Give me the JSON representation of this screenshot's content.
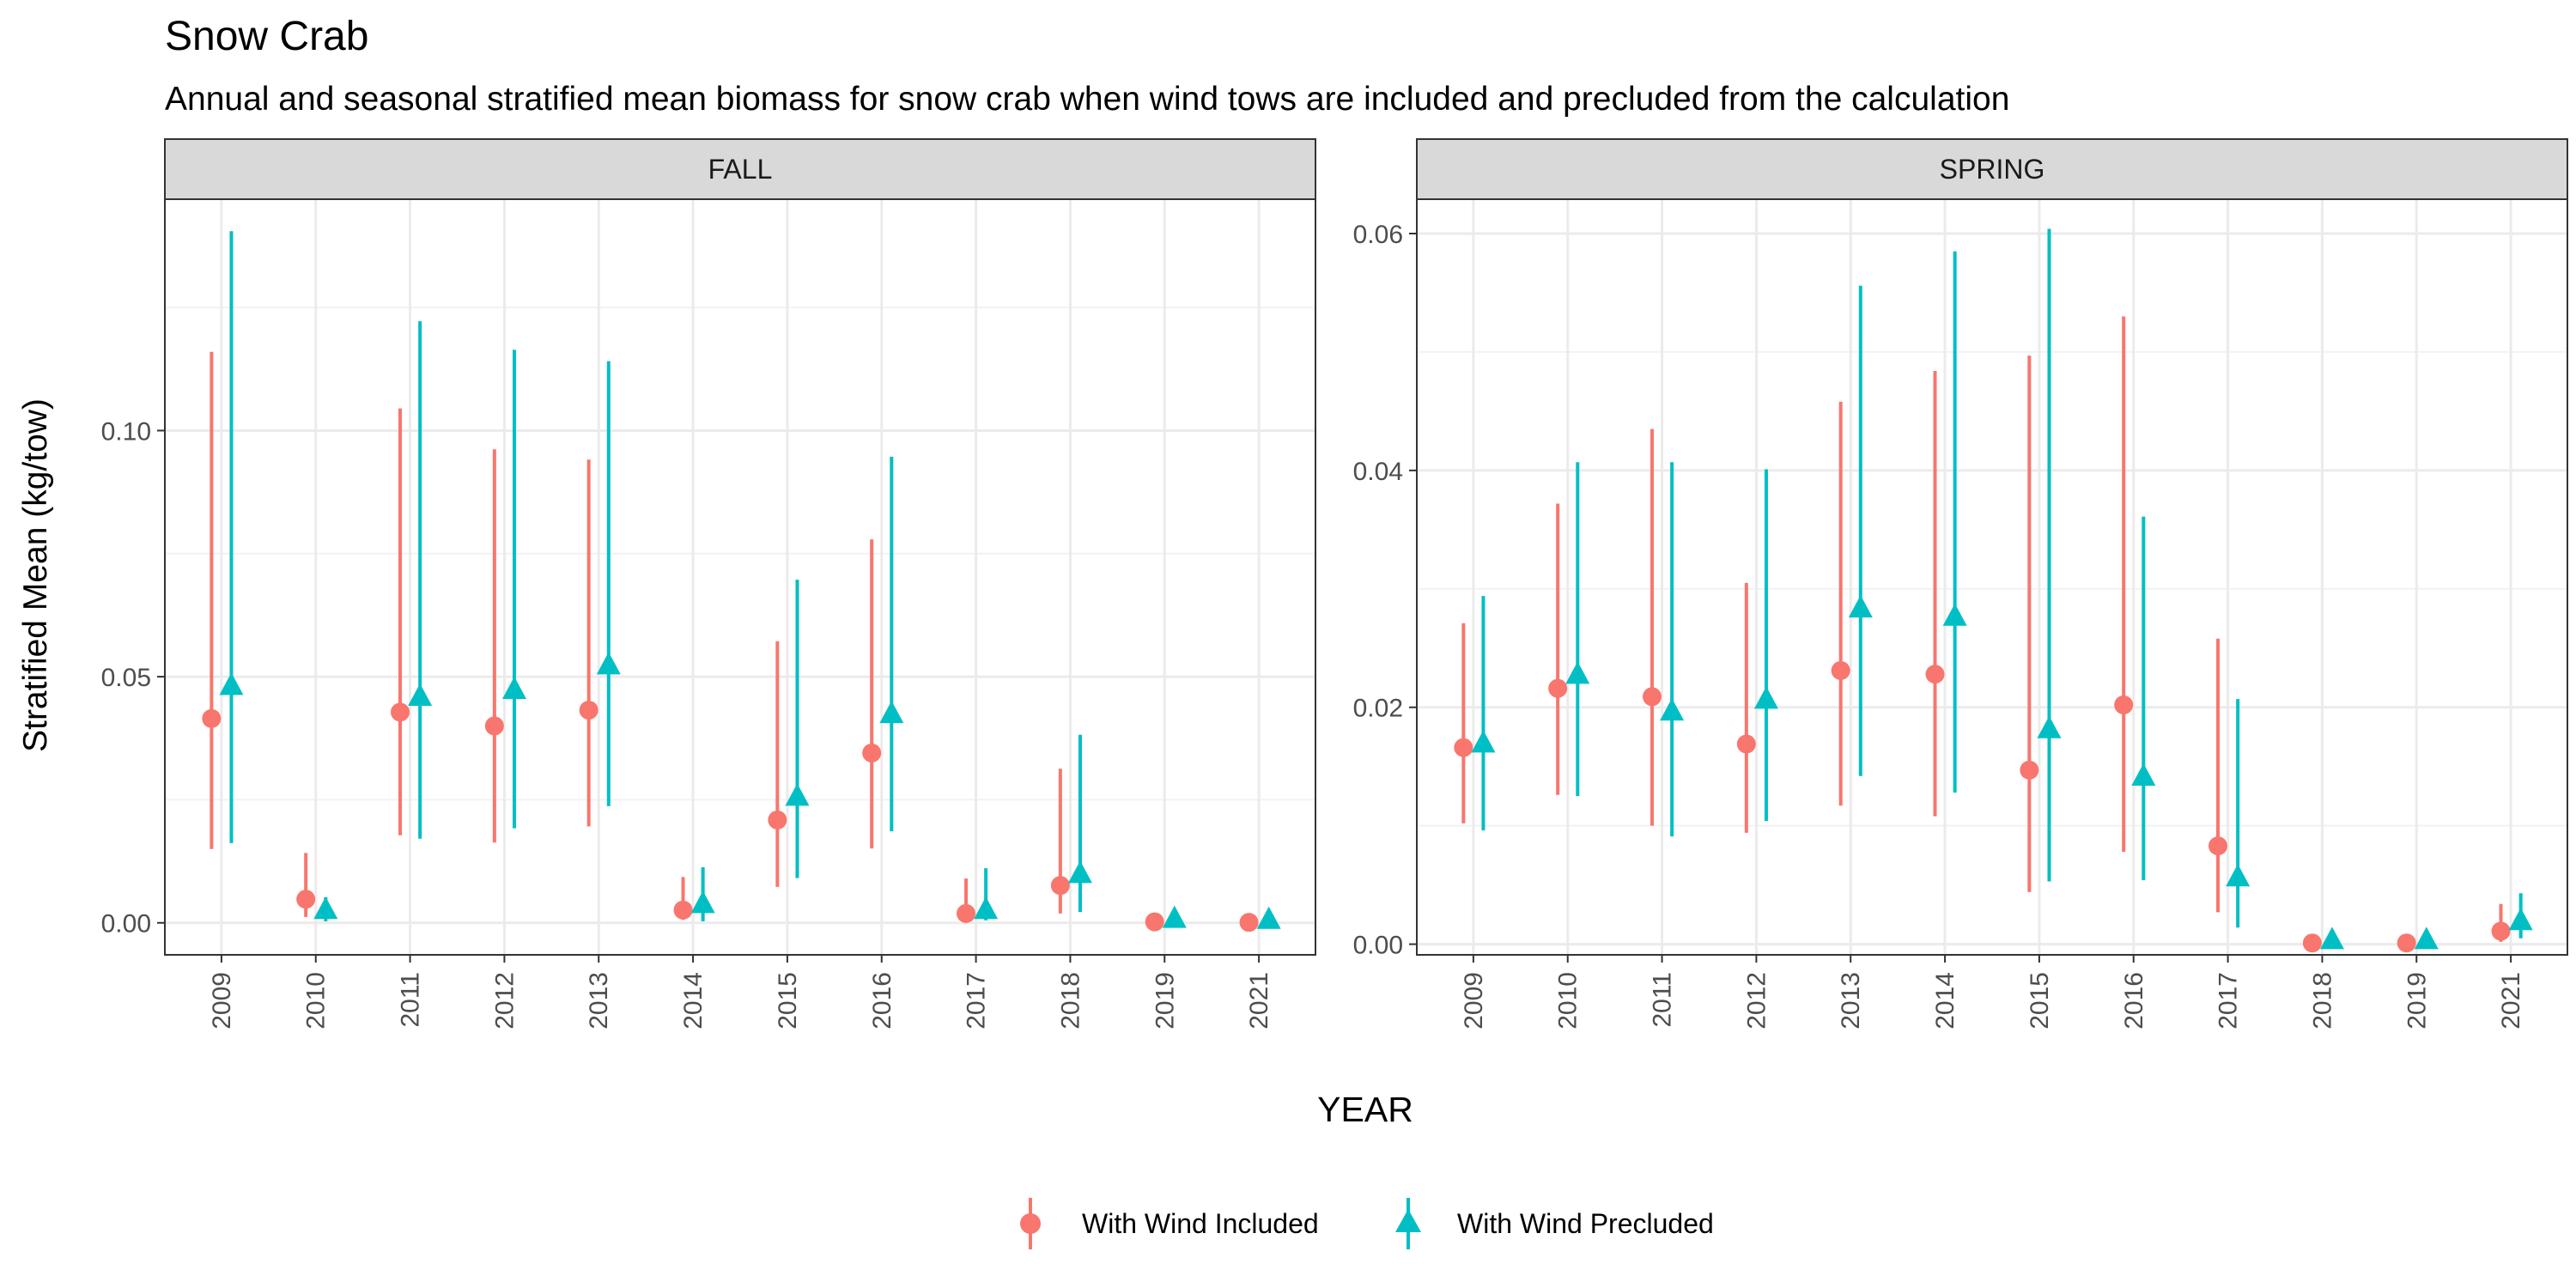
{
  "chart_data": {
    "type": "scatter",
    "title": "Snow Crab",
    "subtitle": "Annual and seasonal stratified mean biomass for snow crab when wind tows are included and precluded from the calculation",
    "xlabel": "YEAR",
    "ylabel": "Stratified Mean (kg/tow)",
    "legend_position": "bottom",
    "grid": true,
    "series": [
      {
        "name": "With Wind Included",
        "color": "#F8766D",
        "marker": "circle"
      },
      {
        "name": "With Wind Precluded",
        "color": "#00BFC4",
        "marker": "triangle"
      }
    ],
    "panels": [
      {
        "label": "FALL",
        "ylim": [
          -0.0065,
          0.147
        ],
        "yticks": [
          0.0,
          0.05,
          0.1
        ],
        "ytick_labels": [
          "0.00",
          "0.05",
          "0.10"
        ],
        "categories": [
          "2009",
          "2010",
          "2011",
          "2012",
          "2013",
          "2014",
          "2015",
          "2016",
          "2017",
          "2018",
          "2019",
          "2021"
        ],
        "data": {
          "With Wind Included": [
            {
              "mean": 0.0415,
              "low": 0.015,
              "high": 0.116
            },
            {
              "mean": 0.0048,
              "low": 0.0012,
              "high": 0.0142
            },
            {
              "mean": 0.0428,
              "low": 0.0178,
              "high": 0.1045
            },
            {
              "mean": 0.04,
              "low": 0.0163,
              "high": 0.0962
            },
            {
              "mean": 0.0432,
              "low": 0.0196,
              "high": 0.0941
            },
            {
              "mean": 0.0026,
              "low": 0.0006,
              "high": 0.0093
            },
            {
              "mean": 0.0209,
              "low": 0.0073,
              "high": 0.0572
            },
            {
              "mean": 0.0345,
              "low": 0.0151,
              "high": 0.0779
            },
            {
              "mean": 0.0019,
              "low": 0.0003,
              "high": 0.009
            },
            {
              "mean": 0.0076,
              "low": 0.0019,
              "high": 0.0313
            },
            {
              "mean": 0.0002,
              "low": 0.0,
              "high": 0.0011
            },
            {
              "mean": 0.0001,
              "low": 0.0,
              "high": 0.0005
            }
          ],
          "With Wind Precluded": [
            {
              "mean": 0.048,
              "low": 0.0162,
              "high": 0.1405
            },
            {
              "mean": 0.0025,
              "low": 0.0003,
              "high": 0.0052
            },
            {
              "mean": 0.0458,
              "low": 0.0171,
              "high": 0.1222
            },
            {
              "mean": 0.0472,
              "low": 0.0192,
              "high": 0.1164
            },
            {
              "mean": 0.0522,
              "low": 0.0237,
              "high": 0.1141
            },
            {
              "mean": 0.0037,
              "low": 0.0003,
              "high": 0.0113
            },
            {
              "mean": 0.0255,
              "low": 0.0091,
              "high": 0.0697
            },
            {
              "mean": 0.0423,
              "low": 0.0186,
              "high": 0.0947
            },
            {
              "mean": 0.0025,
              "low": 0.0005,
              "high": 0.0111
            },
            {
              "mean": 0.0098,
              "low": 0.0022,
              "high": 0.0382
            },
            {
              "mean": 0.0007,
              "low": 0.0,
              "high": 0.0014
            },
            {
              "mean": 0.0005,
              "low": 0.0,
              "high": 0.001
            }
          ]
        }
      },
      {
        "label": "SPRING",
        "ylim": [
          -0.0009,
          0.0629
        ],
        "yticks": [
          0.0,
          0.02,
          0.04,
          0.06
        ],
        "ytick_labels": [
          "0.00",
          "0.02",
          "0.04",
          "0.06"
        ],
        "categories": [
          "2009",
          "2010",
          "2011",
          "2012",
          "2013",
          "2014",
          "2015",
          "2016",
          "2017",
          "2018",
          "2019",
          "2021"
        ],
        "data": {
          "With Wind Included": [
            {
              "mean": 0.0166,
              "low": 0.0102,
              "high": 0.0271
            },
            {
              "mean": 0.0216,
              "low": 0.0126,
              "high": 0.0372
            },
            {
              "mean": 0.0209,
              "low": 0.01,
              "high": 0.0435
            },
            {
              "mean": 0.0169,
              "low": 0.0094,
              "high": 0.0305
            },
            {
              "mean": 0.0231,
              "low": 0.0117,
              "high": 0.0458
            },
            {
              "mean": 0.0228,
              "low": 0.0108,
              "high": 0.0484
            },
            {
              "mean": 0.0147,
              "low": 0.0044,
              "high": 0.0497
            },
            {
              "mean": 0.0202,
              "low": 0.0078,
              "high": 0.053
            },
            {
              "mean": 0.0083,
              "low": 0.0027,
              "high": 0.0258
            },
            {
              "mean": 0.0001,
              "low": 0.0,
              "high": 0.0002
            },
            {
              "mean": 0.0001,
              "low": 0.0,
              "high": 0.0002
            },
            {
              "mean": 0.0011,
              "low": 0.0002,
              "high": 0.0034
            }
          ],
          "With Wind Precluded": [
            {
              "mean": 0.0169,
              "low": 0.0096,
              "high": 0.0294
            },
            {
              "mean": 0.0227,
              "low": 0.0125,
              "high": 0.0407
            },
            {
              "mean": 0.0196,
              "low": 0.0091,
              "high": 0.0407
            },
            {
              "mean": 0.0206,
              "low": 0.0104,
              "high": 0.0401
            },
            {
              "mean": 0.0283,
              "low": 0.0142,
              "high": 0.0556
            },
            {
              "mean": 0.0276,
              "low": 0.0128,
              "high": 0.0585
            },
            {
              "mean": 0.0181,
              "low": 0.0053,
              "high": 0.0604
            },
            {
              "mean": 0.0141,
              "low": 0.0054,
              "high": 0.0361
            },
            {
              "mean": 0.0056,
              "low": 0.0014,
              "high": 0.0207
            },
            {
              "mean": 0.0003,
              "low": 0.0,
              "high": 0.0005
            },
            {
              "mean": 0.0003,
              "low": 0.0,
              "high": 0.0005
            },
            {
              "mean": 0.0019,
              "low": 0.0005,
              "high": 0.0043
            }
          ]
        }
      }
    ]
  }
}
